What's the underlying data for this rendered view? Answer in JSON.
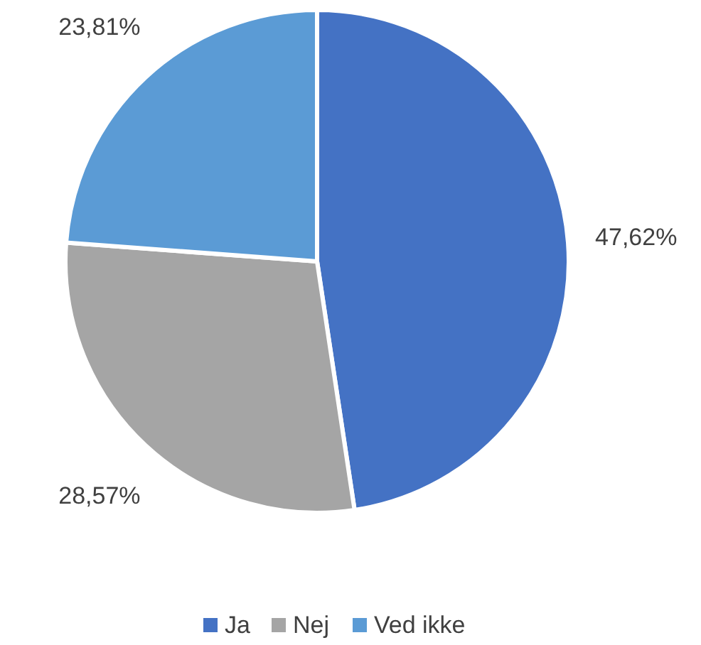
{
  "chart_data": {
    "type": "pie",
    "categories": [
      "Ja",
      "Nej",
      "Ved ikke"
    ],
    "values": [
      47.62,
      28.57,
      23.81
    ],
    "colors": [
      "#4472c4",
      "#a5a5a5",
      "#5b9bd5"
    ],
    "value_labels": [
      "47,62%",
      "28,57%",
      "23,81%"
    ],
    "legend": "bottom"
  }
}
